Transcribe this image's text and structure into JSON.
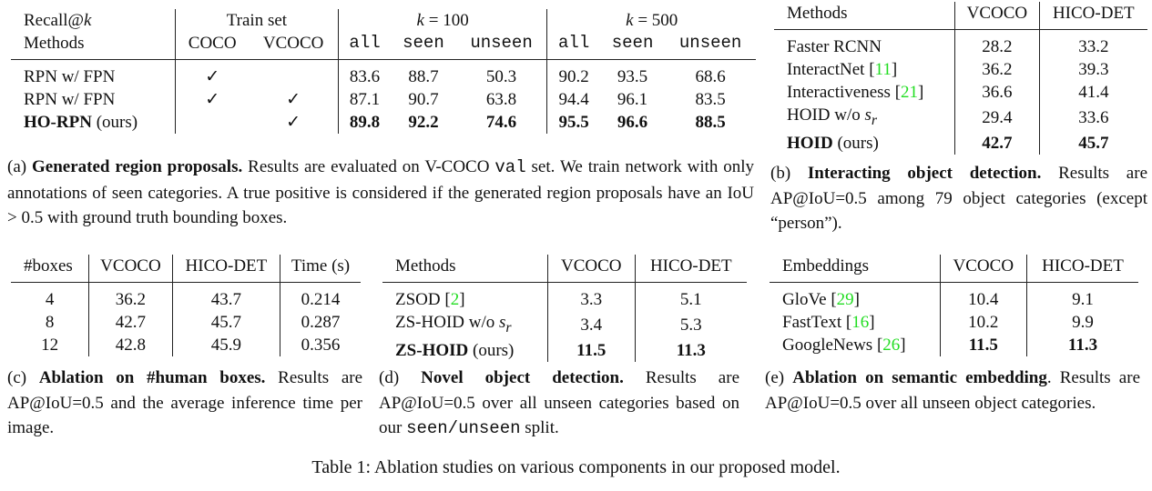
{
  "tables": {
    "a": {
      "header_top": [
        {
          "text": "Recall@",
          "math": "k"
        },
        {
          "text": "Train set",
          "span": 2
        },
        {
          "math": "k",
          "text": " = 100",
          "span": 3
        },
        {
          "math": "k",
          "text": " = 500",
          "span": 3
        }
      ],
      "header": [
        {
          "text": "Methods"
        },
        {
          "text": "COCO"
        },
        {
          "text": "VCOCO"
        },
        {
          "text": "all",
          "mono": true
        },
        {
          "text": "seen",
          "mono": true
        },
        {
          "text": "unseen",
          "mono": true
        },
        {
          "text": "all",
          "mono": true
        },
        {
          "text": "seen",
          "mono": true
        },
        {
          "text": "unseen",
          "mono": true
        }
      ],
      "rows": [
        {
          "method": {
            "label": "RPN w/ FPN"
          },
          "cells": [
            "✓",
            "",
            "83.6",
            "88.7",
            "50.3",
            "90.2",
            "93.5",
            "68.6"
          ]
        },
        {
          "method": {
            "label": "RPN w/ FPN"
          },
          "cells": [
            "✓",
            "✓",
            "87.1",
            "90.7",
            "63.8",
            "94.4",
            "96.1",
            "83.5"
          ]
        },
        {
          "method": {
            "label": "HO-RPN",
            "suffix": "(ours)"
          },
          "best": true,
          "cells": [
            "",
            "✓",
            "89.8",
            "92.2",
            "74.6",
            "95.5",
            "96.6",
            "88.5"
          ]
        }
      ]
    },
    "b": {
      "header": [
        {
          "text": "Methods"
        },
        {
          "text": "VCOCO"
        },
        {
          "text": "HICO-DET"
        }
      ],
      "rows": [
        {
          "method": {
            "label": "Faster RCNN"
          },
          "cells": [
            "28.2",
            "33.2"
          ]
        },
        {
          "method": {
            "label": "InteractNet",
            "cite": "11"
          },
          "cells": [
            "36.2",
            "39.3"
          ]
        },
        {
          "method": {
            "label": "Interactiveness",
            "cite": "21"
          },
          "cells": [
            "36.6",
            "41.4"
          ]
        },
        {
          "method": {
            "label": "HOID w/o",
            "math": "s",
            "sub": "r"
          },
          "cells": [
            "29.4",
            "33.6"
          ]
        },
        {
          "method": {
            "label": "HOID",
            "suffix": "(ours)"
          },
          "best": true,
          "cells": [
            "42.7",
            "45.7"
          ]
        }
      ]
    },
    "c": {
      "header": [
        {
          "text": "#boxes"
        },
        {
          "text": "VCOCO"
        },
        {
          "text": "HICO-DET"
        },
        {
          "text": "Time (s)"
        }
      ],
      "rows": [
        {
          "cells": [
            "4",
            "36.2",
            "43.7",
            "0.214"
          ]
        },
        {
          "cells": [
            "8",
            "42.7",
            "45.7",
            "0.287"
          ]
        },
        {
          "cells": [
            "12",
            "42.8",
            "45.9",
            "0.356"
          ]
        }
      ]
    },
    "d": {
      "header": [
        {
          "text": "Methods"
        },
        {
          "text": "VCOCO"
        },
        {
          "text": "HICO-DET"
        }
      ],
      "rows": [
        {
          "method": {
            "label": "ZSOD",
            "cite": "2"
          },
          "cells": [
            "3.3",
            "5.1"
          ]
        },
        {
          "method": {
            "label": "ZS-HOID w/o",
            "math": "s",
            "sub": "r"
          },
          "cells": [
            "3.4",
            "5.3"
          ]
        },
        {
          "method": {
            "label": "ZS-HOID",
            "suffix": "(ours)"
          },
          "best": true,
          "cells": [
            "11.5",
            "11.3"
          ]
        }
      ]
    },
    "e": {
      "header": [
        {
          "text": "Embeddings"
        },
        {
          "text": "VCOCO"
        },
        {
          "text": "HICO-DET"
        }
      ],
      "rows": [
        {
          "method": {
            "label": "GloVe",
            "cite": "29"
          },
          "cells": [
            "10.4",
            "9.1"
          ]
        },
        {
          "method": {
            "label": "FastText",
            "cite": "16"
          },
          "cells": [
            "10.2",
            "9.9"
          ]
        },
        {
          "method": {
            "label": "GoogleNews",
            "cite": "26"
          },
          "cells": [
            "11.5",
            "11.3"
          ],
          "best_cells": true
        }
      ]
    }
  },
  "captions": {
    "a": {
      "tag": "(a)",
      "title": "Generated region proposals.",
      "t1": "Results are evaluated on V-COCO",
      "mono": "val",
      "t2": "set. We train network with only annotations of seen categories. A true positive is considered if the generated region proposals have an IoU > 0.5 with ground truth bounding boxes."
    },
    "b": {
      "tag": "(b)",
      "title": "Interacting object detection.",
      "t1": "Results are AP@IoU=0.5 among 79 object categories (except “person”)."
    },
    "c": {
      "tag": "(c)",
      "title": "Ablation on #human boxes.",
      "t1": "Results are AP@IoU=0.5 and the average inference time per image."
    },
    "d": {
      "tag": "(d)",
      "title": "Novel object detection.",
      "t1": "Results are AP@IoU=0.5 over all unseen categories based on our",
      "mono": "seen/unseen",
      "t2": "split."
    },
    "e": {
      "tag": "(e)",
      "title": "Ablation on semantic embedding",
      "t1": ". Results are AP@IoU=0.5 over all unseen object categories."
    }
  },
  "main_caption": "Table 1: Ablation studies on various components in our proposed model."
}
